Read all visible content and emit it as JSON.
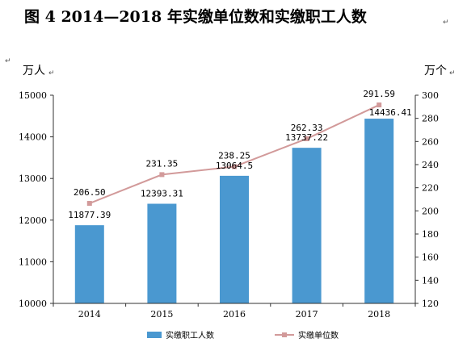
{
  "chart_data": {
    "type": "bar",
    "title": "图 4   2014—2018 年实缴单位数和实缴职工人数",
    "title_mark": "↵",
    "categories": [
      "2014",
      "2015",
      "2016",
      "2017",
      "2018"
    ],
    "left_axis": {
      "unit_label": "万人",
      "unit_mark": "↵",
      "lim": [
        10000,
        15000
      ],
      "ticks": [
        10000,
        11000,
        12000,
        13000,
        14000,
        15000
      ]
    },
    "right_axis": {
      "unit_label": "万个",
      "unit_mark": "↵",
      "lim": [
        120,
        300
      ],
      "ticks": [
        120,
        140,
        160,
        180,
        200,
        220,
        240,
        260,
        280,
        300
      ]
    },
    "series": [
      {
        "name": "实缴职工人数",
        "type": "bar",
        "axis": "left",
        "color": "#4A98D0",
        "values": [
          11877.39,
          12393.31,
          13064.5,
          13737.22,
          14436.41
        ],
        "labels": [
          "11877.39",
          "12393.31",
          "13064.5",
          "13737.22",
          "14436.41"
        ]
      },
      {
        "name": "实缴单位数",
        "type": "line",
        "axis": "right",
        "color": "#D29A9A",
        "values": [
          206.5,
          231.35,
          238.25,
          262.33,
          291.59
        ],
        "labels": [
          "206.50",
          "231.35",
          "238.25",
          "262.33",
          "291.59"
        ]
      }
    ],
    "corner_mark": "↵",
    "grid": false,
    "legend_position": "bottom"
  }
}
